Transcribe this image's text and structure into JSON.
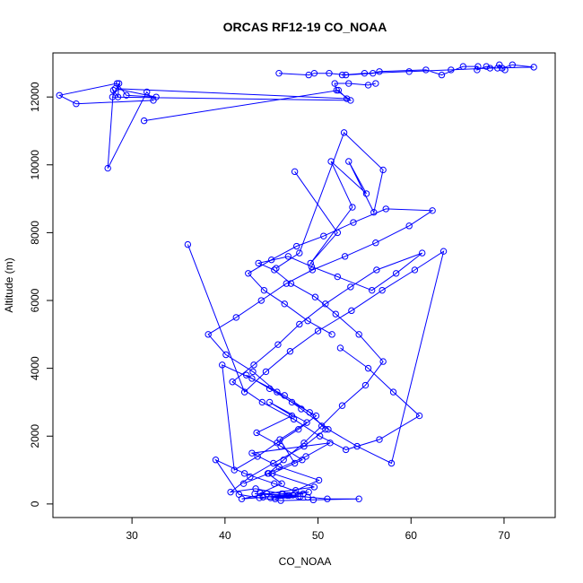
{
  "chart_data": {
    "type": "scatter",
    "title": "ORCAS RF12-19 CO_NOAA",
    "xlabel": "CO_NOAA",
    "ylabel": "Altitude (m)",
    "xlim": [
      21.5,
      75.5
    ],
    "ylim": [
      -400,
      13300
    ],
    "xticks": [
      30,
      40,
      50,
      60,
      70
    ],
    "yticks": [
      0,
      2000,
      4000,
      6000,
      8000,
      10000,
      12000
    ],
    "grid": false,
    "legend": "none",
    "line_color": "#0000ff",
    "marker": "open-circle",
    "connected": true,
    "series": [
      {
        "x": [
          44.1,
          46.7,
          43.2,
          48.1,
          44.9,
          47.3,
          46.2,
          49.0,
          45.4,
          47.9,
          43.8,
          46.1,
          44.6,
          48.7,
          51.3,
          42.9,
          45.8,
          50.1,
          47.6,
          46.9,
          41.8,
          44.5,
          49.6,
          45.1,
          48.3,
          46.0,
          43.4,
          47.2,
          44.8,
          48.8,
          45.9,
          47.5
        ],
        "y": [
          200,
          250,
          300,
          220,
          180,
          260,
          300,
          350,
          150,
          220,
          320,
          600,
          900,
          1400,
          1800,
          1500,
          1100,
          700,
          400,
          250,
          150,
          300,
          500,
          900,
          1300,
          1700,
          2100,
          2600,
          3000,
          2400,
          1900,
          1200
        ]
      },
      {
        "x": [
          42.0,
          44.7,
          46.3,
          48.5,
          50.4,
          52.6,
          55.1,
          57.0,
          54.4,
          51.9,
          49.7,
          47.1,
          45.3,
          43.6,
          46.8,
          49.3,
          52.1,
          55.8,
          58.4,
          61.2,
          56.3,
          53.5,
          50.8,
          48.0,
          45.7,
          43.1,
          40.8,
          44.0,
          47.4,
          50.2,
          53.0,
          56.6,
          60.9,
          58.1,
          55.4,
          52.4
        ],
        "y": [
          600,
          900,
          1300,
          1800,
          2300,
          2900,
          3500,
          4200,
          5000,
          5600,
          6100,
          6500,
          6900,
          7100,
          7300,
          7000,
          6700,
          6300,
          6800,
          7400,
          6900,
          6400,
          5900,
          5300,
          4700,
          4100,
          3600,
          3000,
          2500,
          2000,
          1600,
          1900,
          2600,
          3300,
          4000,
          4600
        ]
      },
      {
        "x": [
          51.5,
          48.9,
          46.4,
          44.2,
          42.5,
          45.0,
          47.7,
          50.6,
          53.8,
          57.3,
          62.3,
          59.8,
          56.2,
          52.9,
          49.4,
          46.6,
          43.9,
          41.2,
          38.2,
          40.1,
          43.0,
          45.6,
          48.2,
          51.1,
          54.2,
          57.9,
          63.5,
          60.4,
          56.9,
          53.6,
          50.0,
          47.0,
          44.4,
          42.1,
          36.0
        ],
        "y": [
          5000,
          5400,
          5900,
          6300,
          6800,
          7200,
          7600,
          7900,
          8300,
          8700,
          8650,
          8200,
          7700,
          7300,
          6900,
          6500,
          6000,
          5500,
          5000,
          4400,
          3900,
          3300,
          2800,
          2200,
          1700,
          1200,
          7450,
          6900,
          6300,
          5700,
          5100,
          4500,
          3900,
          3300,
          7650
        ]
      },
      {
        "x": [
          47.5,
          52.1,
          49.2,
          53.7,
          51.4,
          55.2,
          53.3,
          56.0,
          57.0,
          52.8,
          48.0,
          45.5
        ],
        "y": [
          9800,
          8000,
          7100,
          8750,
          10100,
          9150,
          10100,
          8600,
          9850,
          10950,
          7400,
          6950
        ]
      },
      {
        "x": [
          31.3,
          52.2,
          53.1,
          28.2,
          32.6,
          29.4,
          28.4,
          22.2,
          24.0,
          32.3,
          31.6,
          27.4,
          28.0,
          28.5,
          28.6,
          27.9,
          53.5,
          52.0,
          51.8,
          53.3,
          55.4,
          56.2
        ],
        "y": [
          11300,
          12200,
          11950,
          12250,
          12000,
          12050,
          12400,
          12050,
          11800,
          11900,
          12150,
          9900,
          12200,
          12000,
          12400,
          12000,
          11900,
          12200,
          12400,
          12400,
          12350,
          12400
        ]
      },
      {
        "x": [
          45.8,
          49.0,
          49.6,
          51.2,
          53.0,
          55.9,
          56.6,
          61.6,
          63.3,
          65.6,
          67.2,
          67.1,
          68.1,
          69.3,
          69.5,
          70.1,
          69.8,
          70.9,
          73.2,
          68.5,
          64.3,
          59.8,
          55.0,
          52.6
        ],
        "y": [
          12700,
          12650,
          12700,
          12700,
          12650,
          12700,
          12750,
          12800,
          12650,
          12900,
          12900,
          12800,
          12900,
          12850,
          12950,
          12800,
          12850,
          12950,
          12880,
          12850,
          12800,
          12750,
          12700,
          12650
        ]
      },
      {
        "x": [
          42.3,
          44.8,
          47.2,
          49.8,
          47.9,
          45.6,
          43.5,
          41.0,
          39.7,
          42.9,
          46.4,
          49.1,
          50.8,
          48.5,
          45.2,
          42.7,
          40.6,
          43.3,
          46.1,
          48.9,
          51.0,
          54.4,
          49.5,
          46.0,
          43.7,
          41.5,
          39.0,
          42.1,
          45.3,
          48.4
        ],
        "y": [
          3800,
          3400,
          3000,
          2600,
          2200,
          1800,
          1400,
          1000,
          4100,
          3700,
          3200,
          2700,
          2200,
          1700,
          1200,
          800,
          350,
          450,
          300,
          200,
          150,
          150,
          120,
          100,
          180,
          280,
          1300,
          900,
          600,
          300
        ]
      }
    ]
  }
}
